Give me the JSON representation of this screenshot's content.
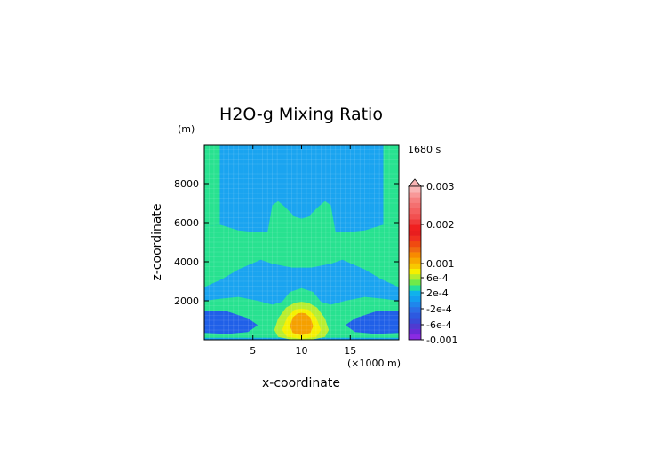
{
  "chart_data": {
    "type": "heatmap",
    "title": "H2O-g Mixing Ratio",
    "xlabel": "x-coordinate",
    "ylabel": "z-coordinate",
    "x_unit": "(×1000 m)",
    "y_unit": "(m)",
    "time_label": "1680 s",
    "xlim": [
      0,
      20
    ],
    "ylim": [
      0,
      10000
    ],
    "x_ticks": [
      5,
      10,
      15
    ],
    "y_ticks": [
      2000,
      4000,
      6000,
      8000
    ],
    "grid": true,
    "legend_placement": "right",
    "colorbar": {
      "labels": [
        {
          "text": "0.003",
          "value": 0.003
        },
        {
          "text": "0.002",
          "value": 0.002
        },
        {
          "text": "0.001",
          "value": 0.001
        },
        {
          "text": "6e-4",
          "value": 0.0006
        },
        {
          "text": "2e-4",
          "value": 0.0002
        },
        {
          "text": "-2e-4",
          "value": -0.0002
        },
        {
          "text": "-6e-4",
          "value": -0.0006
        },
        {
          "text": "-0.001",
          "value": -0.001
        }
      ],
      "colors": [
        "#8a2be2",
        "#6a2bd6",
        "#4f3bd0",
        "#3a4ad8",
        "#2d5ae0",
        "#2a6ee6",
        "#1f86ec",
        "#139ef0",
        "#0fb2ec",
        "#25e09a",
        "#70ea4a",
        "#b8ec2a",
        "#f6f000",
        "#f8c800",
        "#f8a800",
        "#f88a00",
        "#f06a10",
        "#f04a10",
        "#f03020",
        "#e81e1e",
        "#f02020",
        "#f03a3a",
        "#f25050",
        "#f46060",
        "#f47070",
        "#f68080",
        "#f89898",
        "#f9b4b4"
      ]
    },
    "levels": {
      "blue": -0.0004,
      "cyan": -0.0002,
      "green": 0.0,
      "lime": 0.0002,
      "yellow": 0.0004,
      "orange": 0.0006
    },
    "field_colors": {
      "blue": "#2060e8",
      "cyan": "#1aa4f0",
      "green": "#28e290",
      "lime": "#b8ee30",
      "yellow": "#f5f000",
      "orange": "#f5a000"
    },
    "regions": {
      "outer_green": [
        [
          0,
          10000
        ],
        [
          1.6,
          10000
        ],
        [
          1.6,
          5900
        ],
        [
          0,
          5800
        ]
      ],
      "outer_green_right": [
        [
          18.4,
          10000
        ],
        [
          20,
          10000
        ],
        [
          20,
          5800
        ],
        [
          18.4,
          5900
        ]
      ],
      "central_green": [
        [
          0,
          5800
        ],
        [
          1.6,
          5900
        ],
        [
          3.5,
          5600
        ],
        [
          5.5,
          5500
        ],
        [
          6.5,
          5500
        ],
        [
          7.0,
          6900
        ],
        [
          7.6,
          7100
        ],
        [
          8.3,
          6800
        ],
        [
          9.3,
          6300
        ],
        [
          10.0,
          6200
        ],
        [
          10.7,
          6300
        ],
        [
          11.7,
          6800
        ],
        [
          12.4,
          7100
        ],
        [
          13.0,
          6900
        ],
        [
          13.5,
          5500
        ],
        [
          14.5,
          5500
        ],
        [
          16.5,
          5600
        ],
        [
          18.4,
          5900
        ],
        [
          20,
          5800
        ],
        [
          20,
          2700
        ],
        [
          18.2,
          3100
        ],
        [
          16.5,
          3600
        ],
        [
          14.2,
          4100
        ],
        [
          13.0,
          3900
        ],
        [
          12.0,
          3800
        ],
        [
          11.0,
          3700
        ],
        [
          10.0,
          3700
        ],
        [
          9.0,
          3700
        ],
        [
          8.0,
          3800
        ],
        [
          7.0,
          3900
        ],
        [
          5.8,
          4100
        ],
        [
          3.5,
          3600
        ],
        [
          1.8,
          3100
        ],
        [
          0,
          2700
        ]
      ],
      "lower_green": [
        [
          0,
          2000
        ],
        [
          1.6,
          2100
        ],
        [
          3.5,
          2200
        ],
        [
          5.5,
          2000
        ],
        [
          7.0,
          1800
        ],
        [
          8.0,
          1950
        ],
        [
          8.8,
          2450
        ],
        [
          10.0,
          2650
        ],
        [
          11.2,
          2450
        ],
        [
          12.0,
          1950
        ],
        [
          13.0,
          1800
        ],
        [
          14.5,
          2000
        ],
        [
          16.5,
          2200
        ],
        [
          18.4,
          2100
        ],
        [
          20,
          2000
        ],
        [
          20,
          100
        ],
        [
          0,
          100
        ]
      ],
      "blue_left": [
        [
          0,
          1500
        ],
        [
          2.4,
          1450
        ],
        [
          4.5,
          1100
        ],
        [
          5.5,
          750
        ],
        [
          4.5,
          400
        ],
        [
          2.4,
          300
        ],
        [
          0,
          350
        ]
      ],
      "blue_right": [
        [
          20,
          1500
        ],
        [
          17.6,
          1450
        ],
        [
          15.5,
          1100
        ],
        [
          14.5,
          750
        ],
        [
          15.5,
          400
        ],
        [
          17.6,
          300
        ],
        [
          20,
          350
        ]
      ],
      "lime_blob": [
        [
          7.2,
          500
        ],
        [
          7.6,
          1100
        ],
        [
          8.4,
          1650
        ],
        [
          9.3,
          1900
        ],
        [
          10.0,
          1950
        ],
        [
          10.7,
          1900
        ],
        [
          11.6,
          1650
        ],
        [
          12.4,
          1100
        ],
        [
          12.8,
          500
        ],
        [
          12.4,
          150
        ],
        [
          11.0,
          0
        ],
        [
          9.0,
          0
        ],
        [
          7.6,
          150
        ]
      ],
      "yellow_blob": [
        [
          8.0,
          500
        ],
        [
          8.5,
          1150
        ],
        [
          9.3,
          1550
        ],
        [
          10.0,
          1600
        ],
        [
          10.7,
          1550
        ],
        [
          11.5,
          1150
        ],
        [
          12.0,
          500
        ],
        [
          11.5,
          150
        ],
        [
          10.0,
          50
        ],
        [
          8.5,
          150
        ]
      ],
      "orange_blob": [
        [
          8.8,
          700
        ],
        [
          9.1,
          1150
        ],
        [
          9.6,
          1350
        ],
        [
          10.0,
          1380
        ],
        [
          10.4,
          1350
        ],
        [
          10.9,
          1150
        ],
        [
          11.2,
          700
        ],
        [
          10.9,
          350
        ],
        [
          10.0,
          230
        ],
        [
          9.1,
          350
        ]
      ]
    }
  }
}
